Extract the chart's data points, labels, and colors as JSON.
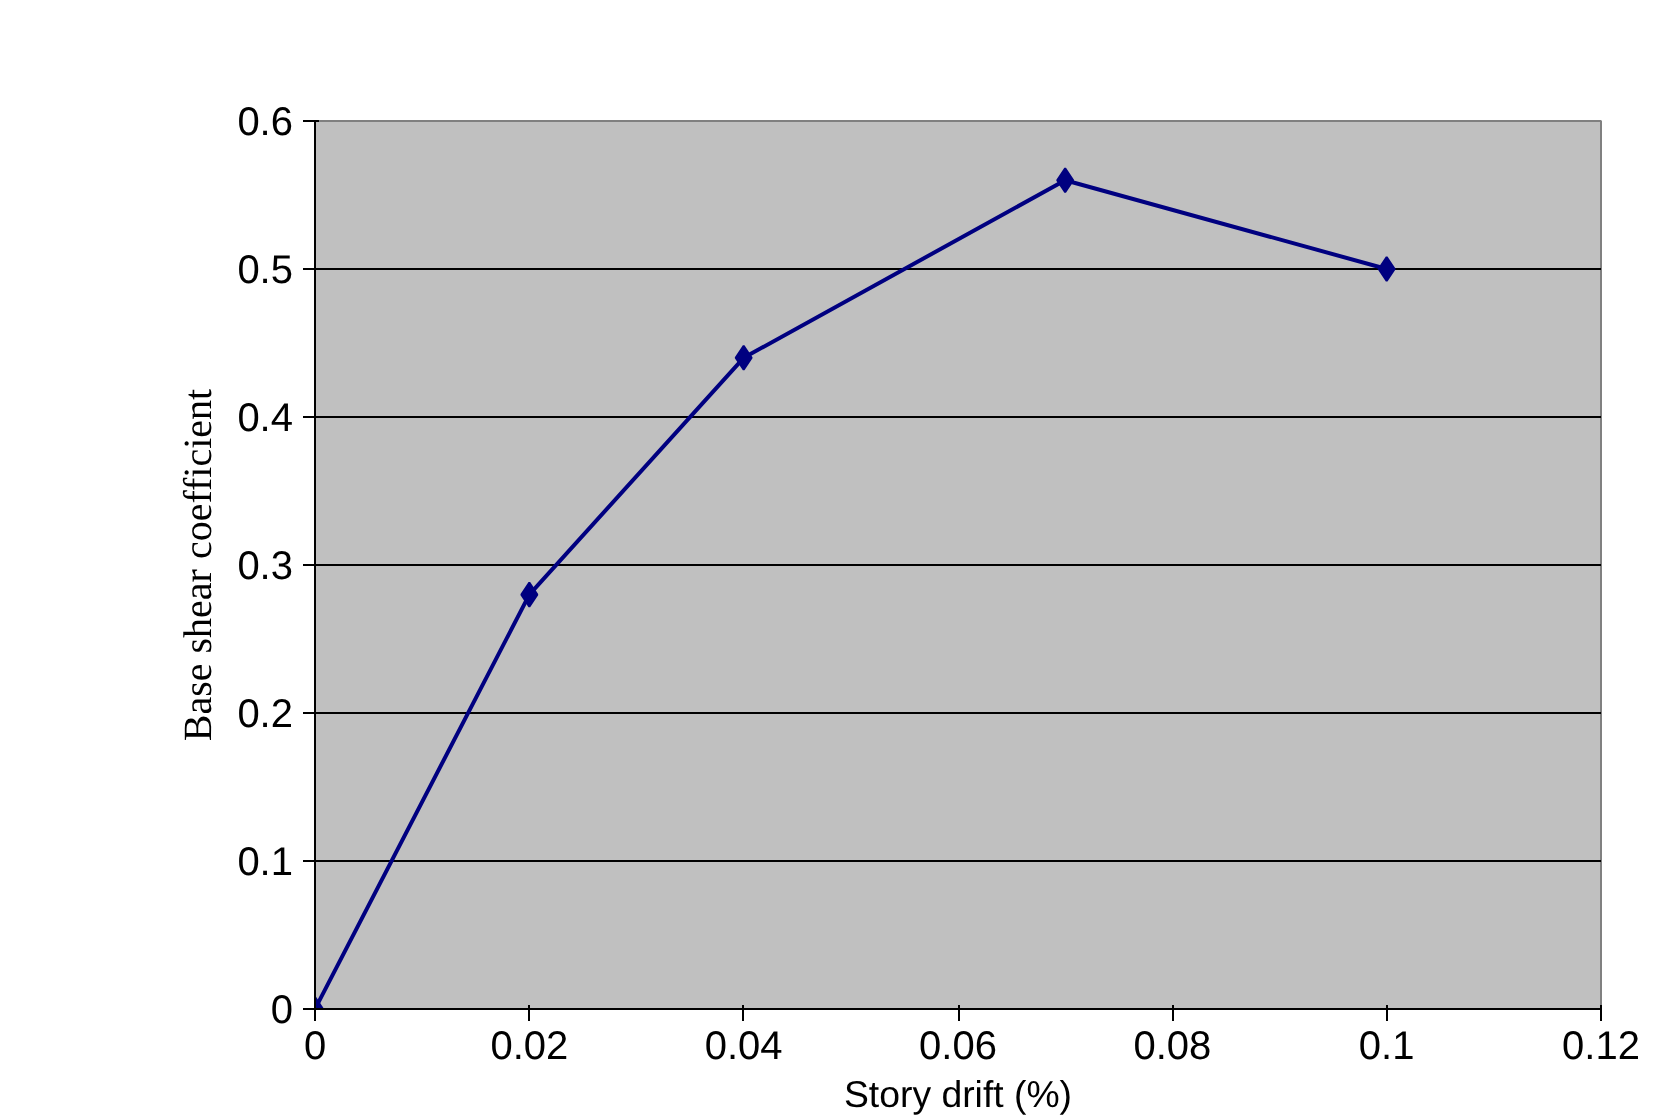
{
  "chart_data": {
    "type": "line",
    "xlabel": "Story drift (%)",
    "ylabel": "Base shear coefficient",
    "x": [
      0,
      0.02,
      0.04,
      0.07,
      0.1
    ],
    "series": [
      {
        "color": "#000080",
        "values": [
          0,
          0.28,
          0.44,
          0.56,
          0.5
        ]
      }
    ],
    "xlim": [
      0,
      0.12
    ],
    "xticks": [
      0,
      0.02,
      0.04,
      0.06,
      0.08,
      0.1,
      0.12
    ],
    "ylim": [
      0,
      0.6
    ],
    "yticks": [
      0,
      0.1,
      0.2,
      0.3,
      0.4,
      0.5,
      0.6
    ],
    "grid": "y",
    "marker": "diamond",
    "line_style": "solid"
  }
}
